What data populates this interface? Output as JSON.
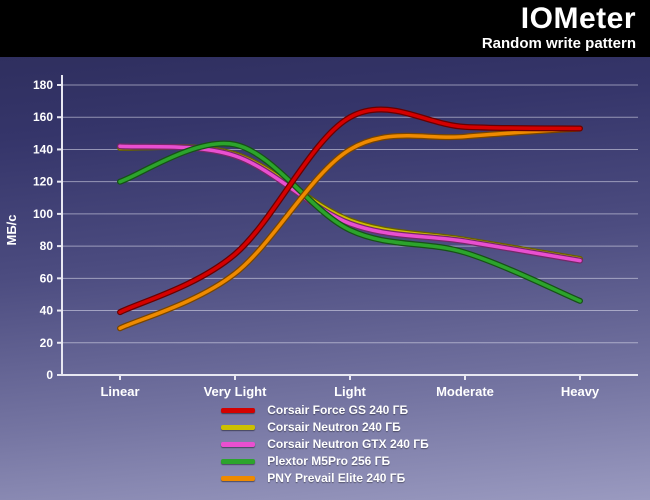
{
  "header": {
    "title": "IOMeter",
    "subtitle": "Random write pattern"
  },
  "chart_data": {
    "type": "line",
    "title": "IOMeter",
    "subtitle": "Random write pattern",
    "categories": [
      "Linear",
      "Very Light",
      "Light",
      "Moderate",
      "Heavy"
    ],
    "ylabel": "МБ/с",
    "ylim": [
      0,
      180
    ],
    "y_ticks": [
      0,
      20,
      40,
      60,
      80,
      100,
      120,
      140,
      160,
      180
    ],
    "grid": true,
    "legend_position": "bottom",
    "series": [
      {
        "name": "Corsair Force GS 240 ГБ",
        "color": "#d40000",
        "values": [
          39,
          75,
          160,
          154,
          153
        ]
      },
      {
        "name": "Corsair Neutron 240 ГБ",
        "color": "#cdc000",
        "values": [
          141,
          137,
          96,
          84,
          72
        ]
      },
      {
        "name": "Corsair Neutron GTX 240 ГБ",
        "color": "#e94fd0",
        "values": [
          142,
          136,
          94,
          83,
          71
        ]
      },
      {
        "name": "Plextor M5Pro 256 ГБ",
        "color": "#2ca42c",
        "values": [
          120,
          143,
          90,
          76,
          46
        ]
      },
      {
        "name": "PNY Prevail Elite 240 ГБ",
        "color": "#ef8a00",
        "values": [
          29,
          63,
          140,
          148,
          153
        ]
      }
    ]
  }
}
